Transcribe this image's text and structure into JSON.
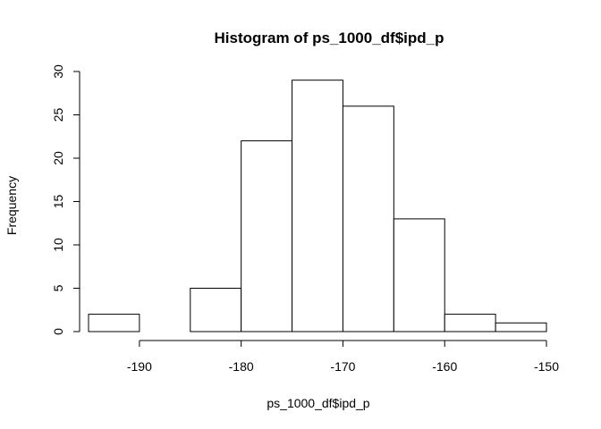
{
  "chart_data": {
    "type": "bar",
    "subtype": "histogram",
    "title": "Histogram of ps_1000_df$ipd_p",
    "xlabel": "ps_1000_df$ipd_p",
    "ylabel": "Frequency",
    "bins": [
      {
        "from": -195,
        "to": -190,
        "count": 2
      },
      {
        "from": -190,
        "to": -185,
        "count": 0
      },
      {
        "from": -185,
        "to": -180,
        "count": 5
      },
      {
        "from": -180,
        "to": -175,
        "count": 22
      },
      {
        "from": -175,
        "to": -170,
        "count": 29
      },
      {
        "from": -170,
        "to": -165,
        "count": 26
      },
      {
        "from": -165,
        "to": -160,
        "count": 13
      },
      {
        "from": -160,
        "to": -155,
        "count": 2
      },
      {
        "from": -155,
        "to": -150,
        "count": 1
      }
    ],
    "x_ticks": [
      -190,
      -180,
      -170,
      -160,
      -150
    ],
    "x_tick_labels": [
      "-190",
      "-180",
      "-170",
      "-160",
      "-150"
    ],
    "y_ticks": [
      0,
      5,
      10,
      15,
      20,
      25,
      30
    ],
    "y_tick_labels": [
      "0",
      "5",
      "10",
      "15",
      "20",
      "25",
      "30"
    ],
    "xlim": [
      -195,
      -150
    ],
    "ylim": [
      0,
      30
    ],
    "grid": false,
    "bar_fill": "#ffffff",
    "bar_stroke": "#000000"
  }
}
